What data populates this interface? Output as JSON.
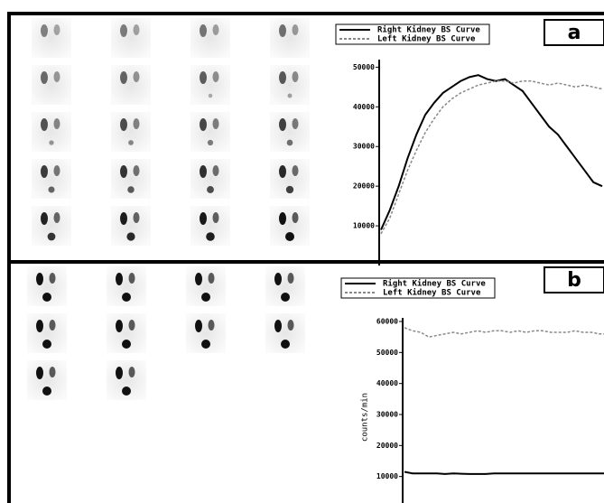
{
  "chart_data": [
    {
      "type": "line",
      "title": "a",
      "series": [
        {
          "name": "Right Kidney BS Curve",
          "color": "#000000",
          "dashed": false,
          "values": [
            9000,
            14000,
            20000,
            27000,
            33000,
            38000,
            41000,
            43500,
            45000,
            46500,
            47500,
            48000,
            47000,
            46500,
            47000,
            45500,
            44000,
            41000,
            38000,
            35000,
            33000,
            30000,
            27000,
            24000,
            21000,
            20000
          ]
        },
        {
          "name": "Left Kidney BS Curve",
          "color": "#888888",
          "dashed": true,
          "values": [
            8000,
            12000,
            18000,
            24000,
            29000,
            33500,
            37000,
            40000,
            42000,
            43500,
            44500,
            45500,
            46000,
            46500,
            46500,
            46000,
            46500,
            46500,
            46000,
            45500,
            46000,
            45500,
            45000,
            45500,
            45000,
            44500
          ]
        }
      ],
      "ylim": [
        0,
        51000
      ],
      "yticks": [
        10000,
        20000,
        30000,
        40000,
        50000
      ]
    },
    {
      "type": "line",
      "title": "b",
      "y_label": "counts/min",
      "series": [
        {
          "name": "Right Kidney BS Curve",
          "color": "#000000",
          "dashed": false,
          "values": [
            11500,
            11000,
            11000,
            11000,
            11000,
            10800,
            11000,
            10900,
            10800,
            10800,
            10800,
            11000,
            11000,
            11000,
            11000,
            11000,
            11000,
            11000,
            11000,
            11000,
            11000,
            11000,
            11000,
            11000,
            11000,
            11000
          ]
        },
        {
          "name": "Left Kidney BS Curve",
          "color": "#888888",
          "dashed": true,
          "values": [
            58000,
            57000,
            56500,
            55000,
            55500,
            56000,
            56500,
            56000,
            56500,
            57000,
            56500,
            57000,
            57000,
            56500,
            57000,
            56500,
            57000,
            57000,
            56500,
            56500,
            56500,
            57000,
            56500,
            56500,
            56000,
            56000
          ]
        }
      ],
      "ylim": [
        0,
        60000
      ],
      "yticks": [
        10000,
        20000,
        30000,
        40000,
        50000,
        60000
      ]
    }
  ]
}
